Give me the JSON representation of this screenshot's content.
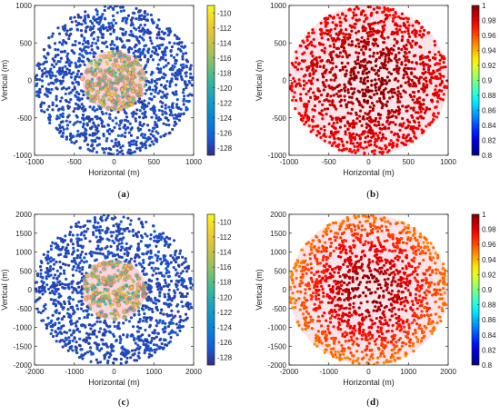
{
  "figure": {
    "panel_labels": [
      {
        "open": "(",
        "letter": "a",
        "close": ")"
      },
      {
        "open": "(",
        "letter": "b",
        "close": ")"
      },
      {
        "open": "(",
        "letter": "c",
        "close": ")"
      },
      {
        "open": "(",
        "letter": "d",
        "close": ")"
      }
    ]
  },
  "chart_data": [
    {
      "type": "scatter",
      "panel": "a",
      "xlabel": "Horizontal (m)",
      "ylabel": "Vertical (m)",
      "xlim": [
        -1000,
        1000
      ],
      "ylim": [
        -1000,
        1000
      ],
      "xticks": [
        "-1000",
        "-500",
        "0",
        "500",
        "1000"
      ],
      "yticks": [
        "1000",
        "500",
        "0",
        "-500",
        "-1000"
      ],
      "xtick_values": [
        -1000,
        -500,
        0,
        500,
        1000
      ],
      "ytick_values": [
        1000,
        500,
        0,
        -500,
        -1000
      ],
      "colorbar": {
        "colormap": "parula",
        "range": [
          -129,
          -109
        ],
        "ticks": [
          "-110",
          "-112",
          "-114",
          "-116",
          "-118",
          "-120",
          "-122",
          "-124",
          "-126",
          "-128"
        ],
        "tick_values": [
          -110,
          -112,
          -114,
          -116,
          -118,
          -120,
          -122,
          -124,
          -126,
          -128
        ]
      },
      "disc_radius": 1000,
      "center_region_radius": 400,
      "points_description": "users uniformly scattered in disc; edge values near -128 (dark blue), center values higher with red circled markers",
      "edge_value": -128,
      "center_value": -116,
      "grid": false,
      "legend": "none"
    },
    {
      "type": "scatter",
      "panel": "b",
      "xlabel": "Horizontal (m)",
      "ylabel": "Vertical (m)",
      "xlim": [
        -1000,
        1000
      ],
      "ylim": [
        -1000,
        1000
      ],
      "xticks": [
        "-1000",
        "-500",
        "0",
        "500",
        "1000"
      ],
      "yticks": [
        "1000",
        "500",
        "0",
        "-500",
        "-1000"
      ],
      "xtick_values": [
        -1000,
        -500,
        0,
        500,
        1000
      ],
      "ytick_values": [
        1000,
        500,
        0,
        -500,
        -1000
      ],
      "colorbar": {
        "colormap": "jet",
        "range": [
          0.8,
          1
        ],
        "ticks": [
          "1",
          "0.98",
          "0.96",
          "0.94",
          "0.92",
          "0.9",
          "0.88",
          "0.86",
          "0.84",
          "0.82",
          "0.8"
        ],
        "tick_values": [
          1,
          0.98,
          0.96,
          0.94,
          0.92,
          0.9,
          0.88,
          0.86,
          0.84,
          0.82,
          0.8
        ]
      },
      "disc_radius": 1000,
      "edge_value": 0.975,
      "center_value": 1.0,
      "grid": false,
      "legend": "none"
    },
    {
      "type": "scatter",
      "panel": "c",
      "xlabel": "Horizontal (m)",
      "ylabel": "Vertical (m)",
      "xlim": [
        -2000,
        2000
      ],
      "ylim": [
        -2000,
        2000
      ],
      "xticks": [
        "-2000",
        "-1000",
        "0",
        "1000",
        "2000"
      ],
      "yticks": [
        "2000",
        "1500",
        "1000",
        "500",
        "0",
        "-500",
        "-1000",
        "-1500",
        "-2000"
      ],
      "xtick_values": [
        -2000,
        -1000,
        0,
        1000,
        2000
      ],
      "ytick_values": [
        2000,
        1500,
        1000,
        500,
        0,
        -500,
        -1000,
        -1500,
        -2000
      ],
      "colorbar": {
        "colormap": "parula",
        "range": [
          -129,
          -109
        ],
        "ticks": [
          "-110",
          "-112",
          "-114",
          "-116",
          "-118",
          "-120",
          "-122",
          "-124",
          "-126",
          "-128"
        ],
        "tick_values": [
          -110,
          -112,
          -114,
          -116,
          -118,
          -120,
          -122,
          -124,
          -126,
          -128
        ]
      },
      "disc_radius": 2000,
      "center_region_radius": 800,
      "edge_value": -128,
      "center_value": -116,
      "grid": false,
      "legend": "none"
    },
    {
      "type": "scatter",
      "panel": "d",
      "xlabel": "Horizontal (m)",
      "ylabel": "Vertical (m)",
      "xlim": [
        -2000,
        2000
      ],
      "ylim": [
        -2000,
        2000
      ],
      "xticks": [
        "-2000",
        "-1000",
        "0",
        "1000",
        "2000"
      ],
      "yticks": [
        "2000",
        "1500",
        "1000",
        "500",
        "0",
        "-500",
        "-1000",
        "-1500",
        "-2000"
      ],
      "xtick_values": [
        -2000,
        -1000,
        0,
        1000,
        2000
      ],
      "ytick_values": [
        2000,
        1500,
        1000,
        500,
        0,
        -500,
        -1000,
        -1500,
        -2000
      ],
      "colorbar": {
        "colormap": "jet",
        "range": [
          0.8,
          1
        ],
        "ticks": [
          "1",
          "0.98",
          "0.96",
          "0.94",
          "0.92",
          "0.9",
          "0.88",
          "0.86",
          "0.84",
          "0.82",
          "0.8"
        ],
        "tick_values": [
          1,
          0.98,
          0.96,
          0.94,
          0.92,
          0.9,
          0.88,
          0.86,
          0.84,
          0.82,
          0.8
        ]
      },
      "disc_radius": 2000,
      "edge_value": 0.95,
      "center_value": 1.0,
      "grid": false,
      "legend": "none"
    }
  ]
}
